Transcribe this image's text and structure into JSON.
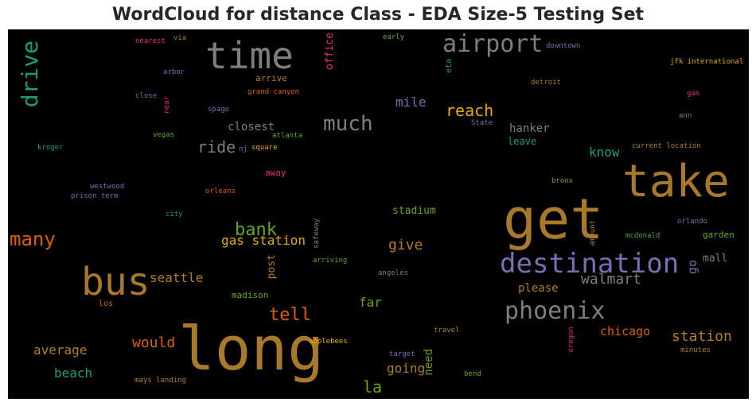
{
  "title": "WordCloud for distance Class - EDA Size-5 Testing Set",
  "colors": {
    "background": "#000000",
    "palette": [
      "#b07f26",
      "#7e7e7e",
      "#1b9e77",
      "#7570b3",
      "#d95f02",
      "#e7298a",
      "#66a61e",
      "#e6ab02"
    ]
  },
  "words": [
    {
      "text": "long",
      "color": "#a8782b"
    },
    {
      "text": "get",
      "color": "#a8782b"
    },
    {
      "text": "take",
      "color": "#a8782b"
    },
    {
      "text": "bus",
      "color": "#a8782b"
    },
    {
      "text": "time",
      "color": "#7e7e7e"
    },
    {
      "text": "destination",
      "color": "#7570b3"
    },
    {
      "text": "airport",
      "color": "#7e7e7e"
    },
    {
      "text": "phoenix",
      "color": "#7e7e7e"
    },
    {
      "text": "drive",
      "color": "#1b9e77"
    },
    {
      "text": "much",
      "color": "#7e7e7e"
    },
    {
      "text": "many",
      "color": "#d95f02"
    },
    {
      "text": "bank",
      "color": "#66a61e"
    },
    {
      "text": "tell",
      "color": "#d95f02"
    },
    {
      "text": "reach",
      "color": "#e6ab02"
    },
    {
      "text": "walmart",
      "color": "#7e7e7e"
    },
    {
      "text": "ride",
      "color": "#7e7e7e"
    },
    {
      "text": "gas station",
      "color": "#e6ab02"
    },
    {
      "text": "seattle",
      "color": "#b07f26"
    },
    {
      "text": "station",
      "color": "#b07f26"
    },
    {
      "text": "would",
      "color": "#d95f02"
    },
    {
      "text": "give",
      "color": "#b07f26"
    },
    {
      "text": "la",
      "color": "#66a61e"
    },
    {
      "text": "average",
      "color": "#b07f26"
    },
    {
      "text": "far",
      "color": "#66a61e"
    },
    {
      "text": "know",
      "color": "#1b9e77"
    },
    {
      "text": "beach",
      "color": "#1b9e77"
    },
    {
      "text": "going",
      "color": "#b07f26"
    },
    {
      "text": "mile",
      "color": "#7570b3"
    },
    {
      "text": "chicago",
      "color": "#d95f02"
    },
    {
      "text": "closest",
      "color": "#7e7e7e"
    },
    {
      "text": "hanker",
      "color": "#7e7e7e"
    },
    {
      "text": "please",
      "color": "#b07f26"
    },
    {
      "text": "stadium",
      "color": "#66a61e"
    },
    {
      "text": "need",
      "color": "#66a61e"
    },
    {
      "text": "post",
      "color": "#b07f26"
    },
    {
      "text": "office",
      "color": "#e7298a"
    },
    {
      "text": "go",
      "color": "#7570b3"
    },
    {
      "text": "mall",
      "color": "#7e7e7e"
    },
    {
      "text": "leave",
      "color": "#1b9e77"
    },
    {
      "text": "madison",
      "color": "#66a61e"
    },
    {
      "text": "garden",
      "color": "#66a61e"
    },
    {
      "text": "arrive",
      "color": "#b07f26"
    },
    {
      "text": "away",
      "color": "#e7298a"
    },
    {
      "text": "eta",
      "color": "#1b9e77"
    },
    {
      "text": "jfk international",
      "color": "#e6ab02"
    },
    {
      "text": "downtown",
      "color": "#7570b3"
    },
    {
      "text": "detroit",
      "color": "#b07f26"
    },
    {
      "text": "nearest",
      "color": "#e7298a"
    },
    {
      "text": "via",
      "color": "#b07f26"
    },
    {
      "text": "early",
      "color": "#66a61e"
    },
    {
      "text": "arbor",
      "color": "#7570b3"
    },
    {
      "text": "close",
      "color": "#7570b3"
    },
    {
      "text": "near",
      "color": "#e7298a"
    },
    {
      "text": "grand canyon",
      "color": "#d95f02"
    },
    {
      "text": "spago",
      "color": "#7570b3"
    },
    {
      "text": "State",
      "color": "#7570b3"
    },
    {
      "text": "gas",
      "color": "#e7298a"
    },
    {
      "text": "ann",
      "color": "#7e7e7e"
    },
    {
      "text": "kroger",
      "color": "#1b9e77"
    },
    {
      "text": "vegas",
      "color": "#66a61e"
    },
    {
      "text": "nj",
      "color": "#7570b3"
    },
    {
      "text": "square",
      "color": "#e6ab02"
    },
    {
      "text": "atlanta",
      "color": "#66a61e"
    },
    {
      "text": "current location",
      "color": "#b07f26"
    },
    {
      "text": "westwood",
      "color": "#7570b3"
    },
    {
      "text": "prison term",
      "color": "#7570b3"
    },
    {
      "text": "orleans",
      "color": "#d95f02"
    },
    {
      "text": "bronx",
      "color": "#66a61e"
    },
    {
      "text": "city",
      "color": "#1b9e77"
    },
    {
      "text": "safeway",
      "color": "#7e7e7e"
    },
    {
      "text": "orlando",
      "color": "#7570b3"
    },
    {
      "text": "amount",
      "color": "#b07f26"
    },
    {
      "text": "mcdonald",
      "color": "#66a61e"
    },
    {
      "text": "arriving",
      "color": "#66a61e"
    },
    {
      "text": "angeles",
      "color": "#7e7e7e"
    },
    {
      "text": "los",
      "color": "#d95f02"
    },
    {
      "text": "travel",
      "color": "#b07f26"
    },
    {
      "text": "oregon",
      "color": "#e7298a"
    },
    {
      "text": "applebees",
      "color": "#e6ab02"
    },
    {
      "text": "target",
      "color": "#7570b3"
    },
    {
      "text": "minutes",
      "color": "#b07f26"
    },
    {
      "text": "bend",
      "color": "#66a61e"
    },
    {
      "text": "mays landing",
      "color": "#b07f26"
    }
  ]
}
